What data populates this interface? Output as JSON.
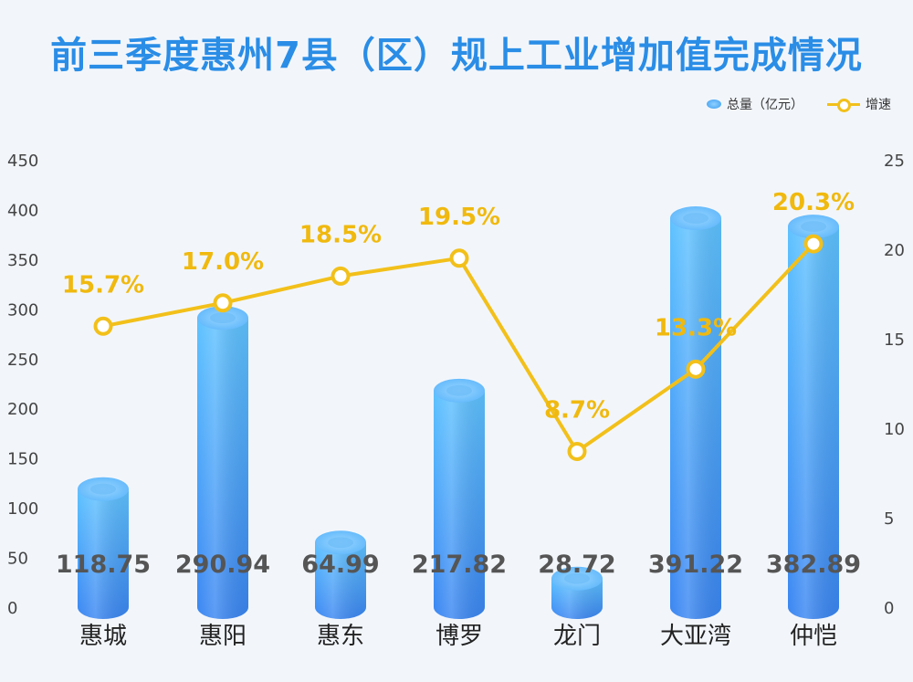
{
  "chart_data": {
    "type": "bar",
    "title": "前三季度惠州7县（区）规上工业增加值完成情况",
    "categories": [
      "惠城",
      "惠阳",
      "惠东",
      "博罗",
      "龙门",
      "大亚湾",
      "仲恺"
    ],
    "series": [
      {
        "name": "总量（亿元）",
        "type": "bar",
        "axis": "left",
        "values": [
          118.75,
          290.94,
          64.99,
          217.82,
          28.72,
          391.22,
          382.89
        ],
        "labels": [
          "118.75",
          "290.94",
          "64.99",
          "217.82",
          "28.72",
          "391.22",
          "382.89"
        ]
      },
      {
        "name": "增速",
        "type": "line",
        "axis": "right",
        "values": [
          15.7,
          17.0,
          18.5,
          19.5,
          8.7,
          13.3,
          20.3
        ],
        "labels": [
          "15.7%",
          "17.0%",
          "18.5%",
          "19.5%",
          "8.7%",
          "13.3%",
          "20.3%"
        ]
      }
    ],
    "y_left": {
      "min": 0,
      "max": 450,
      "ticks": [
        "0",
        "50",
        "100",
        "150",
        "200",
        "250",
        "300",
        "350",
        "400",
        "450"
      ]
    },
    "y_right": {
      "min": 0,
      "max": 25,
      "ticks": [
        "0",
        "5",
        "10",
        "15",
        "20",
        "25"
      ]
    },
    "grid": false,
    "legend_position": "top-right"
  },
  "colors": {
    "title": "#2a8de6",
    "bar_top": "#5ec2ff",
    "bar_bottom": "#3a86f2",
    "line": "#f2c01a",
    "pct_label": "#f0b90f"
  }
}
